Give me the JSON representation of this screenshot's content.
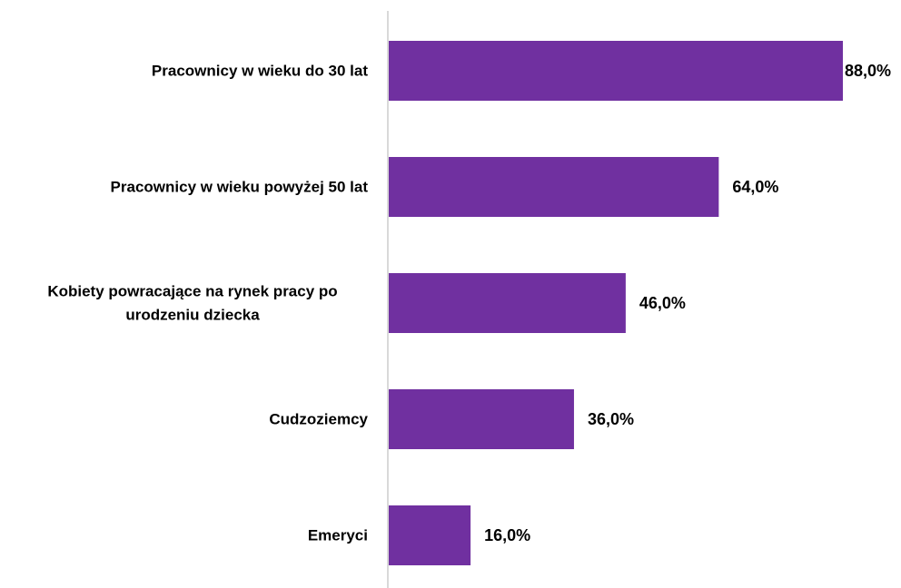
{
  "chart_data": {
    "type": "bar",
    "orientation": "horizontal",
    "categories": [
      [
        "Pracownicy w wieku do 30 lat"
      ],
      [
        "Pracownicy w wieku powyżej 50 lat"
      ],
      [
        "Kobiety powracające na rynek pracy po",
        "urodzeniu dziecka"
      ],
      [
        "Cudzoziemcy"
      ],
      [
        "Emeryci"
      ]
    ],
    "values": [
      88.0,
      64.0,
      46.0,
      36.0,
      16.0
    ],
    "data_labels": [
      "88,0%",
      "64,0%",
      "46,0%",
      "36,0%",
      "16,0%"
    ],
    "title": "",
    "xlabel": "",
    "ylabel": "",
    "xlim": [
      0,
      88
    ],
    "grid": false,
    "legend": "none",
    "colors": {
      "bar": "#7030A0",
      "axis": "#d9d9d9"
    }
  }
}
